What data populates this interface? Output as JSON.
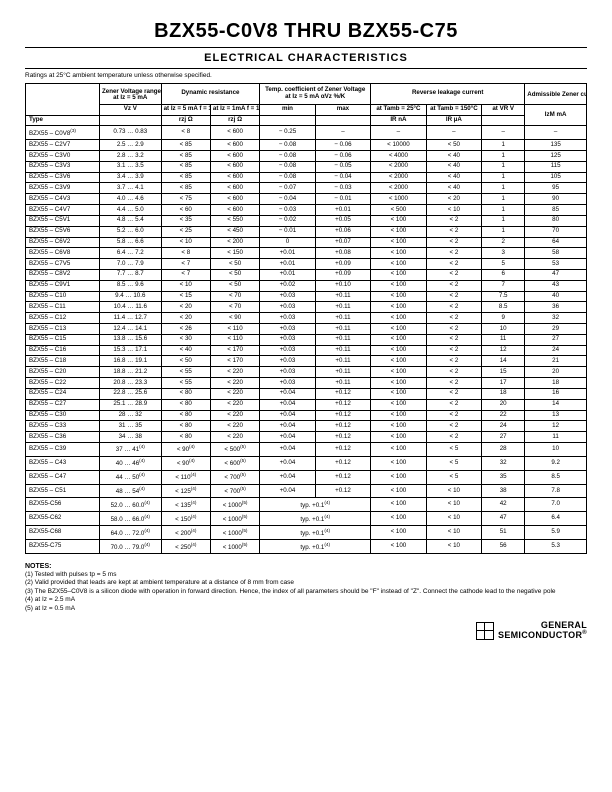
{
  "title": "BZX55-C0V8 THRU BZX55-C75",
  "subtitle": "ELECTRICAL CHARACTERISTICS",
  "ratings_note": "Ratings at 25°C ambient temperature unless otherwise specified.",
  "headers": {
    "zener_voltage": "Zener Voltage range",
    "zener_voltage_sub": "at Iz = 5 mA",
    "dyn_res": "Dynamic resistance",
    "dyn_res_a": "at Iz = 5 mA f = 1 kHz",
    "dyn_res_b": "at Iz = 1mA f = 1 kHz",
    "tc": "Temp. coefficient of Zener Voltage",
    "tc_sub": "at Iz = 5 mA αVz %/K",
    "rev": "Reverse leakage current",
    "rev_a": "at Tamb = 25°C",
    "rev_b": "at Tamb = 150°C",
    "vr": "at VR V",
    "adm": "Admissible Zener current",
    "type": "Type",
    "vz": "Vz V",
    "rzj_a": "rzj Ω",
    "rzj_b": "rzj Ω",
    "min": "min",
    "max": "max",
    "ir_na": "IR nA",
    "ir_ua": "IR µA",
    "izm": "IzM mA"
  },
  "rows": [
    [
      "BZX55 – C0V8(3)",
      "0.73 … 0.83",
      "< 8",
      "< 600",
      "− 0.25",
      "–",
      "–",
      "–",
      "–",
      "–"
    ],
    [
      "BZX55 – C2V7",
      "2.5 … 2.9",
      "< 85",
      "< 600",
      "− 0.08",
      "− 0.06",
      "< 10000",
      "<  50",
      "1",
      "135"
    ],
    [
      "BZX55 – C3V0",
      "2.8 … 3.2",
      "< 85",
      "< 600",
      "− 0.08",
      "− 0.06",
      "< 4000",
      "< 40",
      "1",
      "125"
    ],
    [
      "BZX55 – C3V3",
      "3.1 … 3.5",
      "< 85",
      "< 600",
      "− 0.08",
      "− 0.05",
      "< 2000",
      "< 40",
      "1",
      "115"
    ],
    [
      "BZX55 – C3V6",
      "3.4 … 3.9",
      "< 85",
      "< 600",
      "− 0.08",
      "− 0.04",
      "< 2000",
      "< 40",
      "1",
      "105"
    ],
    [
      "BZX55 – C3V9",
      "3.7 … 4.1",
      "< 85",
      "< 600",
      "− 0.07",
      "− 0.03",
      "< 2000",
      "< 40",
      "1",
      "95"
    ],
    [
      "BZX55 – C4V3",
      "4.0 … 4.6",
      "< 75",
      "< 600",
      "− 0.04",
      "− 0.01",
      "< 1000",
      "< 20",
      "1",
      "90"
    ],
    [
      "BZX55 – C4V7",
      "4.4 … 5.0",
      "< 60",
      "< 600",
      "− 0.03",
      "+0.01",
      "< 500",
      "< 10",
      "1",
      "85"
    ],
    [
      "BZX55 – C5V1",
      "4.8 … 5.4",
      "< 35",
      "< 550",
      "− 0.02",
      "+0.05",
      "< 100",
      "< 2",
      "1",
      "80"
    ],
    [
      "BZX55 – C5V6",
      "5.2 … 6.0",
      "< 25",
      "< 450",
      "− 0.01",
      "+0.06",
      "< 100",
      "< 2",
      "1",
      "70"
    ],
    [
      "BZX55 – C6V2",
      "5.8 … 6.6",
      "< 10",
      "< 200",
      "0",
      "+0.07",
      "< 100",
      "< 2",
      "2",
      "64"
    ],
    [
      "BZX55 – C6V8",
      "6.4 … 7.2",
      "< 8",
      "< 150",
      "+0.01",
      "+0.08",
      "< 100",
      "< 2",
      "3",
      "58"
    ],
    [
      "BZX55 – C7V5",
      "7.0 … 7.9",
      "< 7",
      "< 50",
      "+0.01",
      "+0.09",
      "< 100",
      "< 2",
      "5",
      "53"
    ],
    [
      "BZX55 – C8V2",
      "7.7 … 8.7",
      "< 7",
      "< 50",
      "+0.01",
      "+0.09",
      "< 100",
      "< 2",
      "6",
      "47"
    ],
    [
      "BZX55 – C9V1",
      "8.5 … 9.6",
      "< 10",
      "< 50",
      "+0.02",
      "+0.10",
      "< 100",
      "< 2",
      "7",
      "43"
    ],
    [
      "BZX55 – C10",
      "9.4 … 10.6",
      "< 15",
      "< 70",
      "+0.03",
      "+0.11",
      "< 100",
      "< 2",
      "7.5",
      "40"
    ],
    [
      "BZX55 – C11",
      "10.4 … 11.6",
      "< 20",
      "< 70",
      "+0.03",
      "+0.11",
      "< 100",
      "< 2",
      "8.5",
      "36"
    ],
    [
      "BZX55 – C12",
      "11.4 … 12.7",
      "< 20",
      "< 90",
      "+0.03",
      "+0.11",
      "< 100",
      "< 2",
      "9",
      "32"
    ],
    [
      "BZX55 – C13",
      "12.4 … 14.1",
      "< 26",
      "< 110",
      "+0.03",
      "+0.11",
      "< 100",
      "< 2",
      "10",
      "29"
    ],
    [
      "BZX55 – C15",
      "13.8 … 15.6",
      "< 30",
      "< 110",
      "+0.03",
      "+0.11",
      "< 100",
      "< 2",
      "11",
      "27"
    ],
    [
      "BZX55 – C16",
      "15.3 … 17.1",
      "< 40",
      "< 170",
      "+0.03",
      "+0.11",
      "< 100",
      "< 2",
      "12",
      "24"
    ],
    [
      "BZX55 – C18",
      "16.8 … 19.1",
      "< 50",
      "< 170",
      "+0.03",
      "+0.11",
      "< 100",
      "< 2",
      "14",
      "21"
    ],
    [
      "BZX55 – C20",
      "18.8 … 21.2",
      "< 55",
      "< 220",
      "+0.03",
      "+0.11",
      "< 100",
      "< 2",
      "15",
      "20"
    ],
    [
      "BZX55 – C22",
      "20.8 … 23.3",
      "< 55",
      "< 220",
      "+0.03",
      "+0.11",
      "< 100",
      "< 2",
      "17",
      "18"
    ],
    [
      "BZX55 – C24",
      "22.8 … 25.6",
      "< 80",
      "< 220",
      "+0.04",
      "+0.12",
      "< 100",
      "< 2",
      "18",
      "16"
    ],
    [
      "BZX55 – C27",
      "25.1 … 28.9",
      "< 80",
      "< 220",
      "+0.04",
      "+0.12",
      "< 100",
      "< 2",
      "20",
      "14"
    ],
    [
      "BZX55 – C30",
      "28 … 32",
      "< 80",
      "< 220",
      "+0.04",
      "+0.12",
      "< 100",
      "< 2",
      "22",
      "13"
    ],
    [
      "BZX55 – C33",
      "31 … 35",
      "< 80",
      "< 220",
      "+0.04",
      "+0.12",
      "< 100",
      "< 2",
      "24",
      "12"
    ],
    [
      "BZX55 – C36",
      "34 … 38",
      "< 80",
      "< 220",
      "+0.04",
      "+0.12",
      "< 100",
      "< 2",
      "27",
      "11"
    ],
    [
      "BZX55 – C39",
      "37 … 41(4)",
      "< 90(4)",
      "< 500(5)",
      "+0.04",
      "+0.12",
      "< 100",
      "< 5",
      "28",
      "10"
    ],
    [
      "BZX55 – C43",
      "40 … 46(4)",
      "< 90(4)",
      "< 600(5)",
      "+0.04",
      "+0.12",
      "< 100",
      "< 5",
      "32",
      "9.2"
    ],
    [
      "BZX55 – C47",
      "44 … 50(4)",
      "< 110(4)",
      "< 700(5)",
      "+0.04",
      "+0.12",
      "< 100",
      "< 5",
      "35",
      "8.5"
    ],
    [
      "BZX55 – C51",
      "48 … 54(4)",
      "< 125(4)",
      "< 700(5)",
      "+0.04",
      "+0.12",
      "< 100",
      "< 10",
      "38",
      "7.8"
    ],
    [
      "BZX55-C56",
      "52.0 … 60.0(4)",
      "< 135(4)",
      "< 1000(5)",
      "typ. +0.1(4)",
      "",
      "< 100",
      "< 10",
      "42",
      "7.0"
    ],
    [
      "BZX55-C62",
      "58.0 … 66.0(4)",
      "< 150(4)",
      "< 1000(5)",
      "typ. +0.1(4)",
      "",
      "< 100",
      "< 10",
      "47",
      "6.4"
    ],
    [
      "BZX55-C68",
      "64.0 … 72.0(4)",
      "< 200(4)",
      "< 1000(5)",
      "typ. +0.1(4)",
      "",
      "< 100",
      "< 10",
      "51",
      "5.9"
    ],
    [
      "BZX55-C75",
      "70.0 … 79.0(4)",
      "< 250(4)",
      "< 1000(5)",
      "typ. +0.1(4)",
      "",
      "< 100",
      "< 10",
      "56",
      "5.3"
    ]
  ],
  "notes_title": "NOTES:",
  "notes": [
    "(1) Tested with pulses tp = 5 ms",
    "(2) Valid provided that leads are kept at ambient temperature at a distance of 8 mm from case",
    "(3) The BZX55–C0V8 is a silicon diode with operation in forward direction. Hence, the index of all parameters should be \"F\" instead of \"Z\". Connect the cathode lead to the negative pole",
    "(4) at Iz = 2.5 mA",
    "(5) at Iz = 0.5 mA"
  ],
  "logo_text1": "GENERAL",
  "logo_text2": "SEMICONDUCTOR"
}
